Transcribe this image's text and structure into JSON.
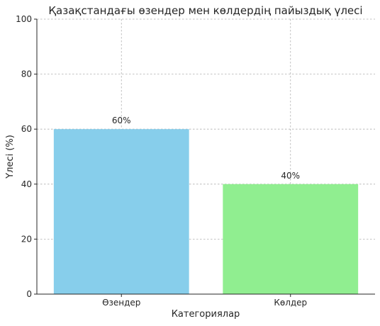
{
  "chart_data": {
    "type": "bar",
    "title": "Қазақстандағы өзендер мен көлдердің пайыздық үлесі",
    "xlabel": "Категориялар",
    "ylabel": "Үлесі (%)",
    "categories": [
      "Өзендер",
      "Көлдер"
    ],
    "values": [
      60,
      40
    ],
    "data_labels": [
      "60%",
      "40%"
    ],
    "colors": [
      "#87ceeb",
      "#90ee90"
    ],
    "ylim": [
      0,
      100
    ],
    "yticks": [
      0,
      20,
      40,
      60,
      80,
      100
    ],
    "grid": true
  }
}
